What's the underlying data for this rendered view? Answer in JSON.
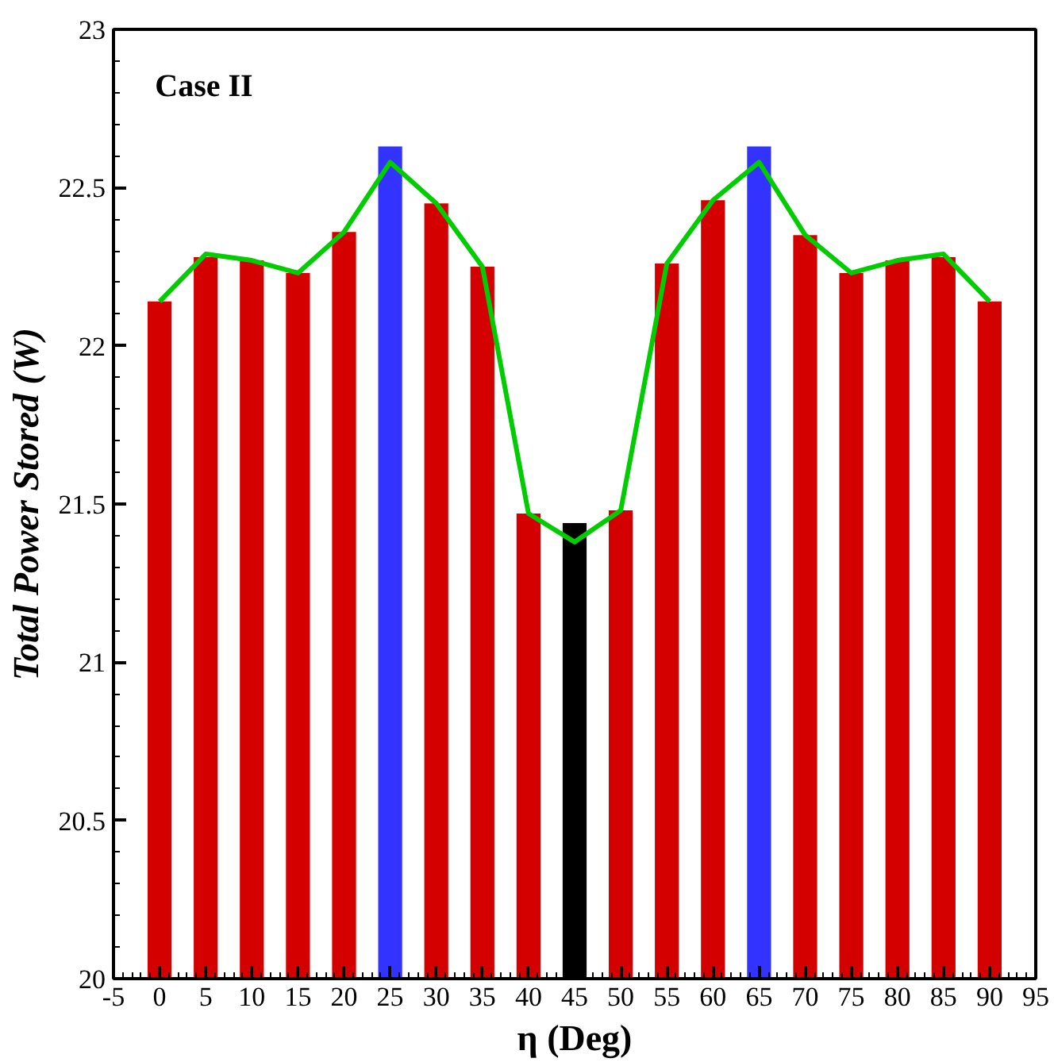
{
  "chart_data": {
    "type": "bar",
    "title": "Case II",
    "xlabel": "η (Deg)",
    "ylabel": "Total Power Stored (W)",
    "x": [
      0,
      5,
      10,
      15,
      20,
      25,
      30,
      35,
      40,
      45,
      50,
      55,
      60,
      65,
      70,
      75,
      80,
      85,
      90
    ],
    "series": [
      {
        "colors": [
          "#d40000",
          "#d40000",
          "#d40000",
          "#d40000",
          "#d40000",
          "#3333ff",
          "#d40000",
          "#d40000",
          "#d40000",
          "#000000",
          "#d40000",
          "#d40000",
          "#d40000",
          "#3333ff",
          "#d40000",
          "#d40000",
          "#d40000",
          "#d40000",
          "#d40000"
        ],
        "values": [
          22.14,
          22.28,
          22.27,
          22.23,
          22.36,
          22.63,
          22.45,
          22.25,
          21.47,
          21.44,
          21.48,
          22.26,
          22.46,
          22.63,
          22.35,
          22.23,
          22.27,
          22.28,
          22.14
        ]
      },
      {
        "type": "line",
        "color": "#00cc00",
        "values": [
          22.14,
          22.29,
          22.27,
          22.23,
          22.36,
          22.58,
          22.45,
          22.25,
          21.47,
          21.38,
          21.48,
          22.26,
          22.46,
          22.58,
          22.35,
          22.23,
          22.27,
          22.29,
          22.14
        ]
      }
    ],
    "xlim": [
      -5,
      95
    ],
    "ylim": [
      20,
      23
    ],
    "xticks": [
      -5,
      0,
      5,
      10,
      15,
      20,
      25,
      30,
      35,
      40,
      45,
      50,
      55,
      60,
      65,
      70,
      75,
      80,
      85,
      90,
      95
    ],
    "yticks": [
      20,
      20.5,
      21,
      21.5,
      22,
      22.5,
      23
    ],
    "grid": false
  }
}
